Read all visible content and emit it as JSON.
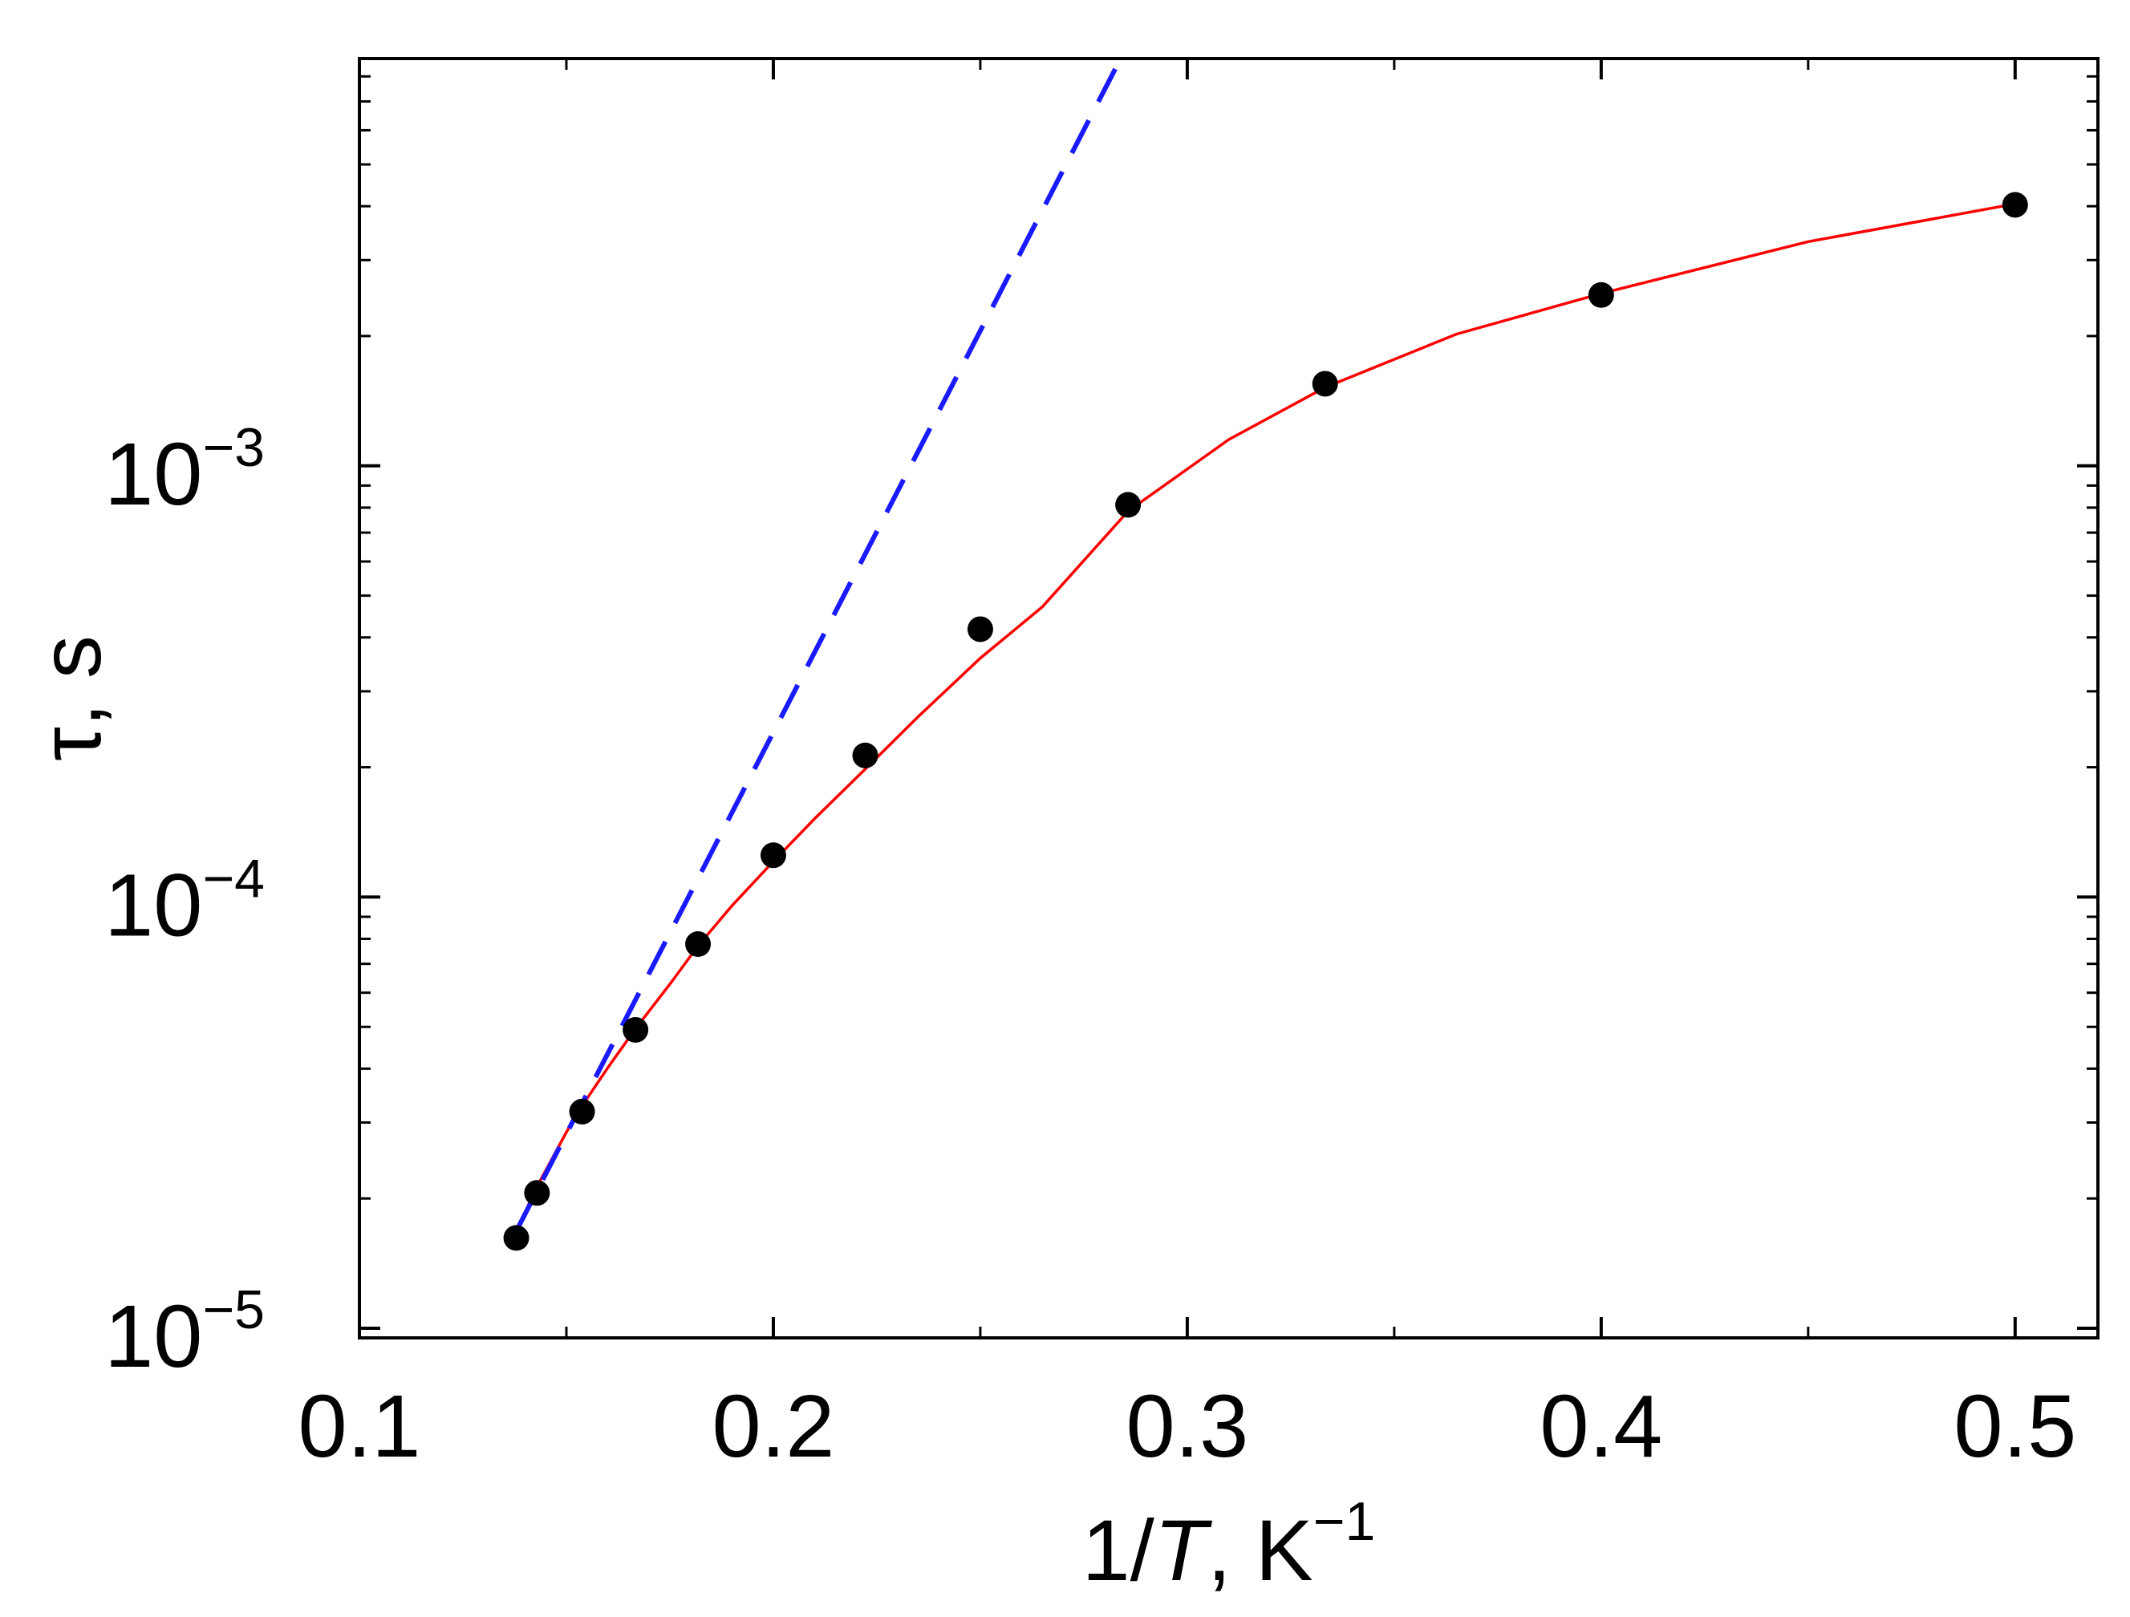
{
  "chart_data": {
    "type": "scatter",
    "title": "",
    "xlabel": {
      "prefix": "1/",
      "italic": "T",
      "suffix": ", K",
      "superscript": "−1"
    },
    "ylabel": "τ, s",
    "x_scale": "linear",
    "y_scale": "log",
    "xlim": [
      0.1,
      0.52
    ],
    "ylim": [
      9.5e-06,
      0.0088
    ],
    "x_ticks": [
      {
        "value": 0.1,
        "label": "0.1"
      },
      {
        "value": 0.2,
        "label": "0.2"
      },
      {
        "value": 0.3,
        "label": "0.3"
      },
      {
        "value": 0.4,
        "label": "0.4"
      },
      {
        "value": 0.5,
        "label": "0.5"
      }
    ],
    "x_minor_ticks": [
      0.15,
      0.25,
      0.35,
      0.45
    ],
    "y_ticks": [
      {
        "value": 1e-05,
        "base": "10",
        "exponent": "−5"
      },
      {
        "value": 0.0001,
        "base": "10",
        "exponent": "−4"
      },
      {
        "value": 0.001,
        "base": "10",
        "exponent": "−3"
      }
    ],
    "grid": false,
    "legend": "none",
    "colors": {
      "points": "#000000",
      "fit": "#ff0000",
      "arrhenius": "#1a1aff"
    },
    "series": [
      {
        "kind": "points",
        "x": [
          0.1379,
          0.1429,
          0.1538,
          0.1667,
          0.1818,
          0.2,
          0.2222,
          0.25,
          0.2857,
          0.3333,
          0.4,
          0.5
        ],
        "y": [
          1.62e-05,
          2.06e-05,
          3.18e-05,
          4.92e-05,
          7.78e-05,
          0.000125,
          0.000213,
          0.000418,
          0.000812,
          0.00155,
          0.00249,
          0.00403
        ]
      },
      {
        "kind": "solid-line",
        "x": [
          0.1379,
          0.1429,
          0.15,
          0.1538,
          0.16,
          0.1667,
          0.175,
          0.1818,
          0.19,
          0.2,
          0.21,
          0.2222,
          0.235,
          0.25,
          0.265,
          0.2857,
          0.31,
          0.3333,
          0.365,
          0.4,
          0.45,
          0.5
        ],
        "y": [
          1.68e-05,
          2.13e-05,
          2.85e-05,
          3.28e-05,
          4.02e-05,
          4.95e-05,
          6.28e-05,
          7.7e-05,
          9.55e-05,
          0.000121,
          0.000152,
          0.000198,
          0.000262,
          0.000358,
          0.000471,
          0.000785,
          0.00115,
          0.00152,
          0.00202,
          0.00251,
          0.00331,
          0.00405
        ]
      },
      {
        "kind": "dashed-line",
        "x": [
          0.1379,
          0.2839
        ],
        "y": [
          1.68e-05,
          0.0088
        ]
      }
    ]
  }
}
